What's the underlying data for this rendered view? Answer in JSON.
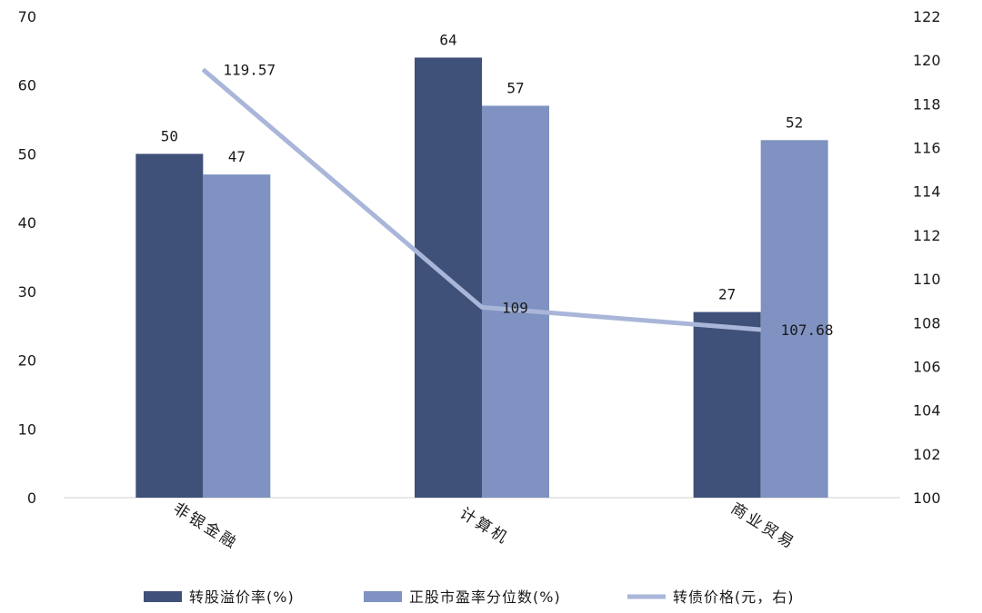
{
  "chart_data": {
    "type": "bar",
    "categories": [
      "非银金融",
      "计算机",
      "商业贸易"
    ],
    "series": [
      {
        "name": "转股溢价率(%)",
        "type": "bar",
        "axis": "left",
        "color": "#3f5079",
        "values": [
          50,
          64,
          27
        ],
        "labels": [
          "50",
          "64",
          "27"
        ]
      },
      {
        "name": "正股市盈率分位数(%)",
        "type": "bar",
        "axis": "left",
        "color": "#7f92c1",
        "values": [
          47,
          57,
          52
        ],
        "labels": [
          "47",
          "57",
          "52"
        ]
      },
      {
        "name": "转债价格(元，右)",
        "type": "line",
        "axis": "right",
        "color": "#a9b6d9",
        "values": [
          119.57,
          108.7,
          107.68
        ],
        "labels": [
          "119.57",
          "109",
          "107.68"
        ]
      }
    ],
    "ylim_left": [
      0,
      70
    ],
    "yticks_left": [
      "0",
      "10",
      "20",
      "30",
      "40",
      "50",
      "60",
      "70"
    ],
    "ylim_right": [
      100,
      122
    ],
    "yticks_right": [
      "100",
      "102",
      "104",
      "106",
      "108",
      "110",
      "112",
      "114",
      "116",
      "118",
      "120",
      "122"
    ],
    "legend_position": "bottom",
    "grid": false
  }
}
